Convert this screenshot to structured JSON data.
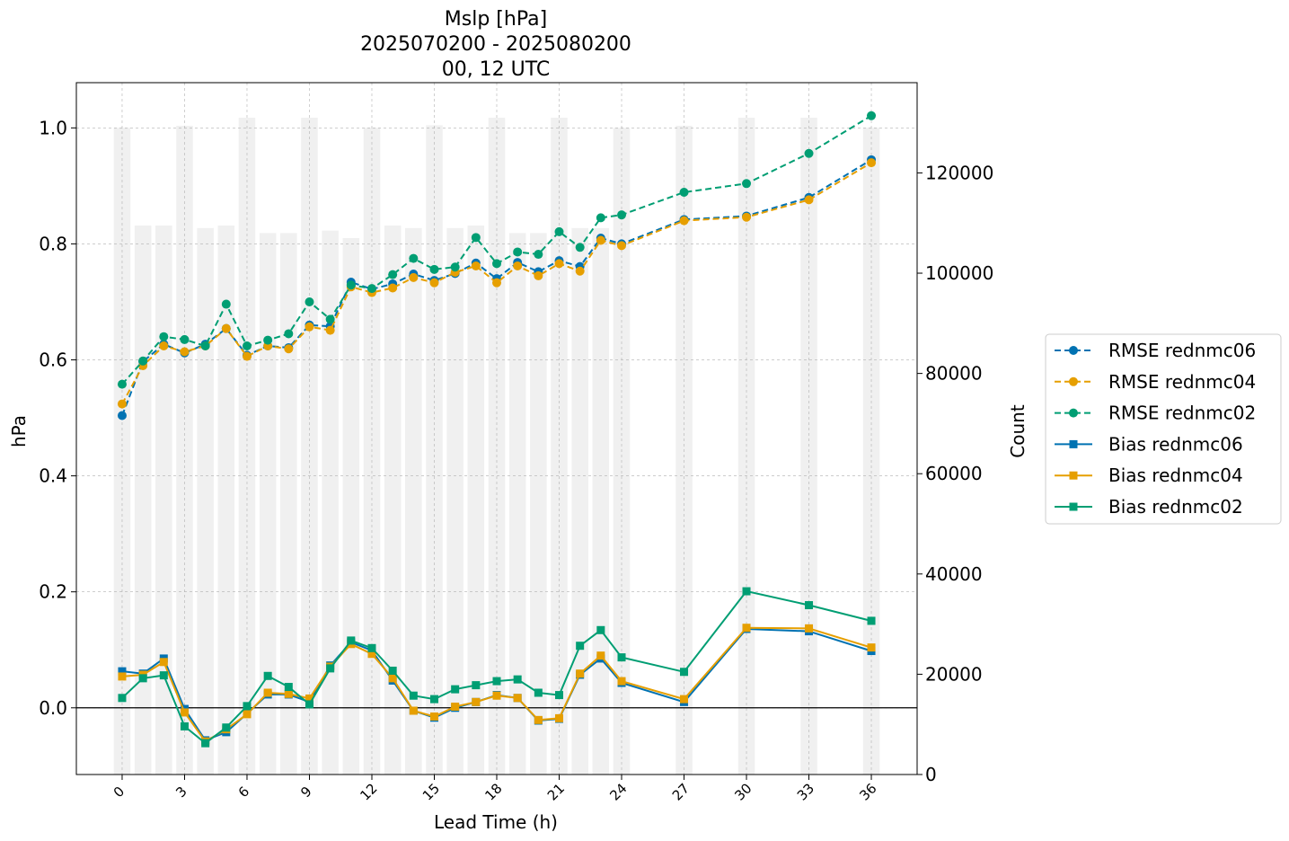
{
  "chart_data": {
    "type": "line",
    "title_lines": [
      "Mslp [hPa]",
      "2025070200 - 2025080200",
      "00, 12 UTC"
    ],
    "xlabel": "Lead Time (h)",
    "ylabel_left": "hPa",
    "ylabel_right": "Count",
    "x_ticks": [
      "0",
      "3",
      "6",
      "9",
      "12",
      "15",
      "18",
      "21",
      "24",
      "27",
      "30",
      "33",
      "36"
    ],
    "x_tick_values": [
      0,
      3,
      6,
      9,
      12,
      15,
      18,
      21,
      24,
      27,
      30,
      33,
      36
    ],
    "y_left_ticks": [
      "0.0",
      "0.2",
      "0.4",
      "0.6",
      "0.8",
      "1.0"
    ],
    "y_left_tick_values": [
      0.0,
      0.2,
      0.4,
      0.6,
      0.8,
      1.0
    ],
    "y_right_ticks": [
      "0",
      "20000",
      "40000",
      "60000",
      "80000",
      "100000",
      "120000"
    ],
    "y_right_tick_values": [
      0,
      20000,
      40000,
      60000,
      80000,
      100000,
      120000
    ],
    "xlim": [
      -2.2,
      38.2
    ],
    "ylim_left": [
      -0.115,
      1.078
    ],
    "ylim_right": [
      0,
      138000
    ],
    "grid": true,
    "zero_line": true,
    "legend_placement": "outside-right",
    "lead_times": [
      0,
      1,
      2,
      3,
      4,
      5,
      6,
      7,
      8,
      9,
      10,
      11,
      12,
      13,
      14,
      15,
      16,
      17,
      18,
      19,
      20,
      21,
      22,
      23,
      24,
      27,
      30,
      33,
      36
    ],
    "counts": [
      129000,
      109500,
      109500,
      129400,
      109000,
      109500,
      131000,
      108000,
      108000,
      131000,
      108500,
      107000,
      129000,
      109500,
      109000,
      129500,
      109000,
      109500,
      131000,
      108000,
      108000,
      131000,
      109000,
      109000,
      129000,
      129400,
      131000,
      131000,
      129000
    ],
    "count_bar_color": "#f0f0f0",
    "series": [
      {
        "name": "RMSE rednmc06",
        "kind": "rmse",
        "color": "#0072b2",
        "marker": "circle",
        "dashed": true,
        "values": [
          0.504,
          0.597,
          0.627,
          0.612,
          0.627,
          0.654,
          0.608,
          0.624,
          0.621,
          0.66,
          0.658,
          0.734,
          0.722,
          0.731,
          0.748,
          0.737,
          0.749,
          0.767,
          0.74,
          0.768,
          0.752,
          0.771,
          0.761,
          0.81,
          0.8,
          0.842,
          0.848,
          0.88,
          0.945
        ]
      },
      {
        "name": "RMSE rednmc04",
        "kind": "rmse",
        "color": "#e69f00",
        "marker": "circle",
        "dashed": true,
        "values": [
          0.524,
          0.59,
          0.624,
          0.614,
          0.624,
          0.654,
          0.606,
          0.624,
          0.619,
          0.657,
          0.651,
          0.726,
          0.716,
          0.724,
          0.742,
          0.733,
          0.751,
          0.762,
          0.733,
          0.762,
          0.745,
          0.766,
          0.753,
          0.806,
          0.797,
          0.84,
          0.846,
          0.876,
          0.94
        ]
      },
      {
        "name": "RMSE rednmc02",
        "kind": "rmse",
        "color": "#009e73",
        "marker": "circle",
        "dashed": true,
        "values": [
          0.558,
          0.598,
          0.64,
          0.635,
          0.624,
          0.696,
          0.624,
          0.634,
          0.645,
          0.7,
          0.67,
          0.729,
          0.723,
          0.747,
          0.775,
          0.756,
          0.76,
          0.811,
          0.766,
          0.786,
          0.782,
          0.821,
          0.794,
          0.845,
          0.85,
          0.889,
          0.904,
          0.956,
          1.021
        ]
      },
      {
        "name": "Bias rednmc06",
        "kind": "bias",
        "color": "#0072b2",
        "marker": "square",
        "dashed": false,
        "values": [
          0.063,
          0.059,
          0.085,
          -0.002,
          -0.056,
          -0.042,
          -0.01,
          0.023,
          0.023,
          0.01,
          0.073,
          0.113,
          0.099,
          0.047,
          -0.005,
          -0.017,
          0.0,
          0.01,
          0.022,
          0.017,
          -0.022,
          -0.019,
          0.057,
          0.085,
          0.043,
          0.01,
          0.136,
          0.132,
          0.098
        ]
      },
      {
        "name": "Bias rednmc04",
        "kind": "bias",
        "color": "#e69f00",
        "marker": "square",
        "dashed": false,
        "values": [
          0.054,
          0.057,
          0.079,
          -0.008,
          -0.058,
          -0.037,
          -0.011,
          0.026,
          0.024,
          0.016,
          0.071,
          0.11,
          0.093,
          0.051,
          -0.005,
          -0.015,
          0.002,
          0.01,
          0.021,
          0.017,
          -0.021,
          -0.018,
          0.059,
          0.09,
          0.046,
          0.015,
          0.138,
          0.137,
          0.104
        ]
      },
      {
        "name": "Bias rednmc02",
        "kind": "bias",
        "color": "#009e73",
        "marker": "square",
        "dashed": false,
        "values": [
          0.017,
          0.051,
          0.056,
          -0.032,
          -0.061,
          -0.034,
          0.003,
          0.055,
          0.036,
          0.006,
          0.068,
          0.116,
          0.103,
          0.064,
          0.021,
          0.015,
          0.032,
          0.039,
          0.046,
          0.049,
          0.026,
          0.022,
          0.107,
          0.134,
          0.087,
          0.062,
          0.201,
          0.177,
          0.15
        ]
      }
    ]
  }
}
